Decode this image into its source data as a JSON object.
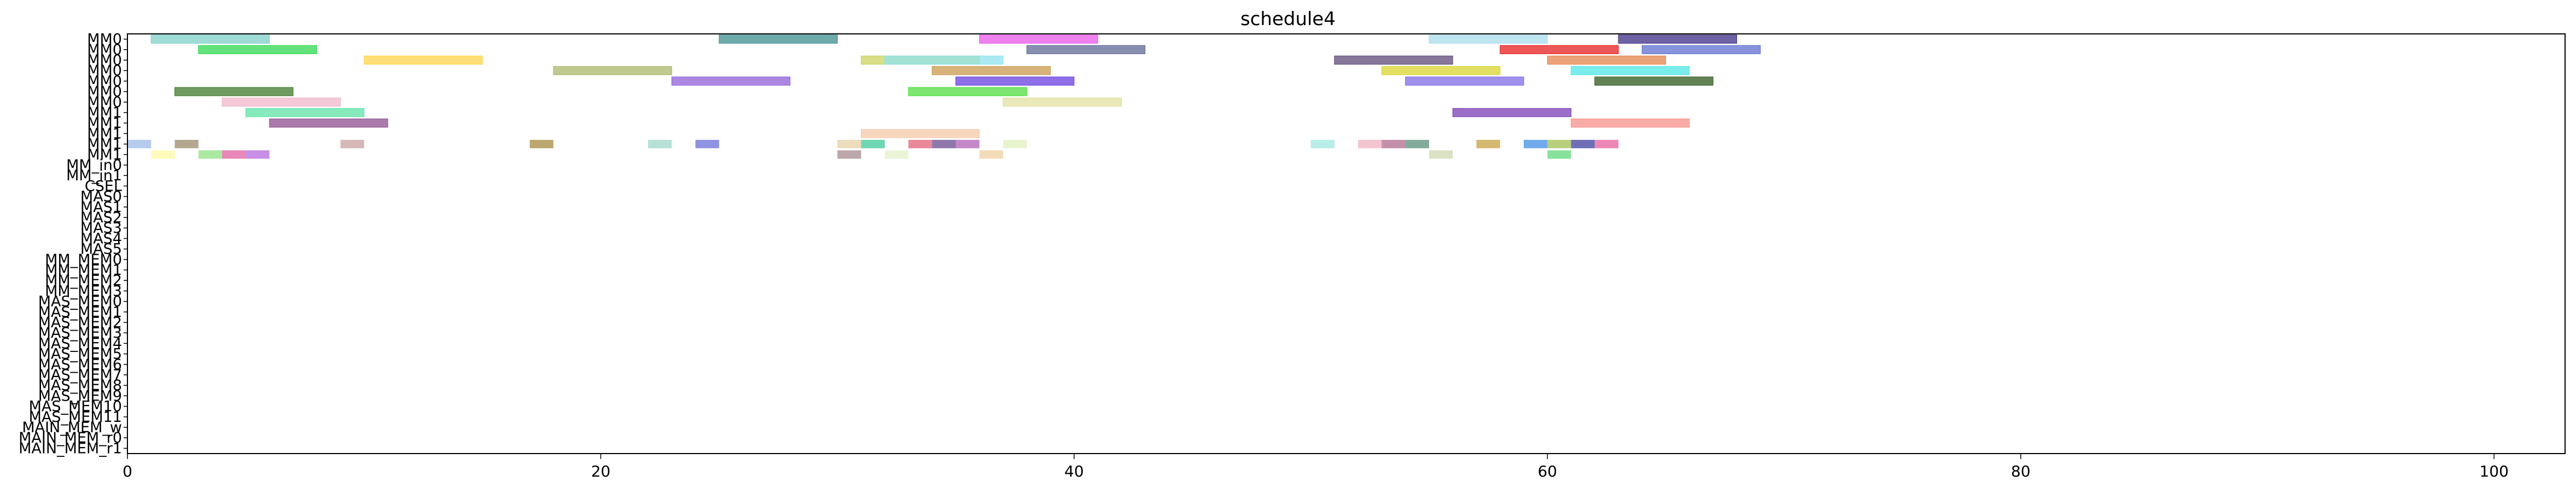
{
  "chart_data": {
    "type": "gantt",
    "title": "schedule4",
    "xlabel": "",
    "ylabel": "",
    "xlim": [
      0,
      103
    ],
    "xticks": [
      0,
      20,
      40,
      60,
      80,
      100
    ],
    "grid": false,
    "legend": "none",
    "rows": [
      "MM0",
      "MM0",
      "MM0",
      "MM0",
      "MM0",
      "MM0",
      "MM0",
      "MM1",
      "MM1",
      "MM1",
      "MM1",
      "MM1",
      "MM_in0",
      "MM_in1",
      "CSEL",
      "MAS0",
      "MAS1",
      "MAS2",
      "MAS3",
      "MAS4",
      "MAS5",
      "MM_MEM0",
      "MM_MEM1",
      "MM_MEM2",
      "MM_MEM3",
      "MAS_MEM0",
      "MAS_MEM1",
      "MAS_MEM2",
      "MAS_MEM3",
      "MAS_MEM4",
      "MAS_MEM5",
      "MAS_MEM6",
      "MAS_MEM7",
      "MAS_MEM8",
      "MAS_MEM9",
      "MAS_MEM10",
      "MAS_MEM11",
      "MAIN_MEM_w",
      "MAIN_MEM_r0",
      "MAIN_MEM_r1"
    ],
    "tasks": [
      {
        "row": 0,
        "start": 1,
        "end": 6,
        "color": "#7fcfc9"
      },
      {
        "row": 0,
        "start": 25,
        "end": 30,
        "color": "#3f8f8f"
      },
      {
        "row": 0,
        "start": 36,
        "end": 41,
        "color": "#ea57ea"
      },
      {
        "row": 0,
        "start": 55,
        "end": 60,
        "color": "#a9dceb"
      },
      {
        "row": 0,
        "start": 63,
        "end": 68,
        "color": "#3f2e85"
      },
      {
        "row": 1,
        "start": 3,
        "end": 8,
        "color": "#2fd84f"
      },
      {
        "row": 1,
        "start": 38,
        "end": 43,
        "color": "#5f6a95"
      },
      {
        "row": 1,
        "start": 58,
        "end": 63,
        "color": "#e81f1f"
      },
      {
        "row": 1,
        "start": 64,
        "end": 69,
        "color": "#5f6fd0"
      },
      {
        "row": 2,
        "start": 10,
        "end": 15,
        "color": "#fdd44a"
      },
      {
        "row": 2,
        "start": 31,
        "end": 36,
        "color": "#c9d45f"
      },
      {
        "row": 2,
        "start": 32,
        "end": 37,
        "color": "#8fe3ee"
      },
      {
        "row": 2,
        "start": 51,
        "end": 56,
        "color": "#5e4a77"
      },
      {
        "row": 2,
        "start": 60,
        "end": 65,
        "color": "#e5844f"
      },
      {
        "row": 3,
        "start": 18,
        "end": 23,
        "color": "#a9b76b"
      },
      {
        "row": 3,
        "start": 34,
        "end": 39,
        "color": "#c99a4f"
      },
      {
        "row": 3,
        "start": 53,
        "end": 58,
        "color": "#d8d42f"
      },
      {
        "row": 3,
        "start": 61,
        "end": 66,
        "color": "#4fe6e6"
      },
      {
        "row": 4,
        "start": 23,
        "end": 28,
        "color": "#8f5fd8"
      },
      {
        "row": 4,
        "start": 35,
        "end": 40,
        "color": "#6a3fe0"
      },
      {
        "row": 4,
        "start": 54,
        "end": 59,
        "color": "#7f6be6"
      },
      {
        "row": 4,
        "start": 62,
        "end": 67,
        "color": "#2f5a1f"
      },
      {
        "row": 5,
        "start": 2,
        "end": 7,
        "color": "#3f7a2a"
      },
      {
        "row": 5,
        "start": 33,
        "end": 38,
        "color": "#4fdc3f"
      },
      {
        "row": 6,
        "start": 4,
        "end": 9,
        "color": "#f0b5c9"
      },
      {
        "row": 6,
        "start": 37,
        "end": 42,
        "color": "#e0e0a0"
      },
      {
        "row": 7,
        "start": 5,
        "end": 10,
        "color": "#5fe3a6"
      },
      {
        "row": 7,
        "start": 56,
        "end": 61,
        "color": "#7a3fb5"
      },
      {
        "row": 8,
        "start": 6,
        "end": 11,
        "color": "#8f4f8f"
      },
      {
        "row": 8,
        "start": 61,
        "end": 66,
        "color": "#f7908a"
      },
      {
        "row": 9,
        "start": 31,
        "end": 36,
        "color": "#f5c9a9"
      }
    ],
    "tick_rows": [
      "MM0",
      "MM0",
      "MM0",
      "MM0",
      "MM0",
      "MM0",
      "MM0",
      "MM1",
      "MM1",
      "MM1",
      "MM1",
      "MM1",
      "MM_in0",
      "MM_in1",
      "CSEL",
      "MAS0",
      "MAS1",
      "MAS2",
      "MAS3",
      "MAS4",
      "MAS5",
      "MM_MEM0",
      "MM_MEM1",
      "MM_MEM2",
      "MM_MEM3",
      "MAS_MEM0",
      "MAS_MEM1",
      "MAS_MEM2",
      "MAS_MEM3",
      "MAS_MEM4",
      "MAS_MEM5",
      "MAS_MEM6",
      "MAS_MEM7",
      "MAS_MEM8",
      "MAS_MEM9",
      "MAS_MEM10",
      "MAS_MEM11",
      "MAIN_MEM_w",
      "MAIN_MEM_r0",
      "MAIN_MEM_r1"
    ],
    "small_tasks": [
      {
        "row": 10,
        "x": 0,
        "color": "#9dbbe8"
      },
      {
        "row": 10,
        "x": 2,
        "color": "#9a8a6a"
      },
      {
        "row": 10,
        "x": 9,
        "color": "#c7a0a0"
      },
      {
        "row": 10,
        "x": 17,
        "color": "#a68a3f"
      },
      {
        "row": 10,
        "x": 22,
        "color": "#9fd6c9"
      },
      {
        "row": 10,
        "x": 24,
        "color": "#6a6fd8"
      },
      {
        "row": 10,
        "x": 30,
        "color": "#e6d0a6"
      },
      {
        "row": 10,
        "x": 31,
        "color": "#3fc99a"
      },
      {
        "row": 10,
        "x": 33,
        "color": "#e25f7a"
      },
      {
        "row": 10,
        "x": 34,
        "color": "#6a4a8f"
      },
      {
        "row": 10,
        "x": 35,
        "color": "#b05fb5"
      },
      {
        "row": 10,
        "x": 37,
        "color": "#e0f0c0"
      },
      {
        "row": 10,
        "x": 50,
        "color": "#9fe8df"
      },
      {
        "row": 10,
        "x": 52,
        "color": "#f0b0c0"
      },
      {
        "row": 10,
        "x": 53,
        "color": "#b06a8f"
      },
      {
        "row": 10,
        "x": 54,
        "color": "#5a8f7a"
      },
      {
        "row": 10,
        "x": 57,
        "color": "#c7a03f"
      },
      {
        "row": 10,
        "x": 59,
        "color": "#3f8fe6"
      },
      {
        "row": 10,
        "x": 60,
        "color": "#a0c04f"
      },
      {
        "row": 10,
        "x": 61,
        "color": "#3f3fa0"
      },
      {
        "row": 10,
        "x": 62,
        "color": "#e65fa0"
      },
      {
        "row": 11,
        "x": 1,
        "color": "#fff7a6"
      },
      {
        "row": 11,
        "x": 3,
        "color": "#8fe080"
      },
      {
        "row": 11,
        "x": 4,
        "color": "#e05fa0"
      },
      {
        "row": 11,
        "x": 5,
        "color": "#b56adf"
      },
      {
        "row": 11,
        "x": 30,
        "color": "#a68a8f"
      },
      {
        "row": 11,
        "x": 32,
        "color": "#e6f0c9"
      },
      {
        "row": 11,
        "x": 36,
        "color": "#f0cfa0"
      },
      {
        "row": 11,
        "x": 55,
        "color": "#cfd8b0"
      },
      {
        "row": 11,
        "x": 60,
        "color": "#5fd87a"
      }
    ]
  }
}
